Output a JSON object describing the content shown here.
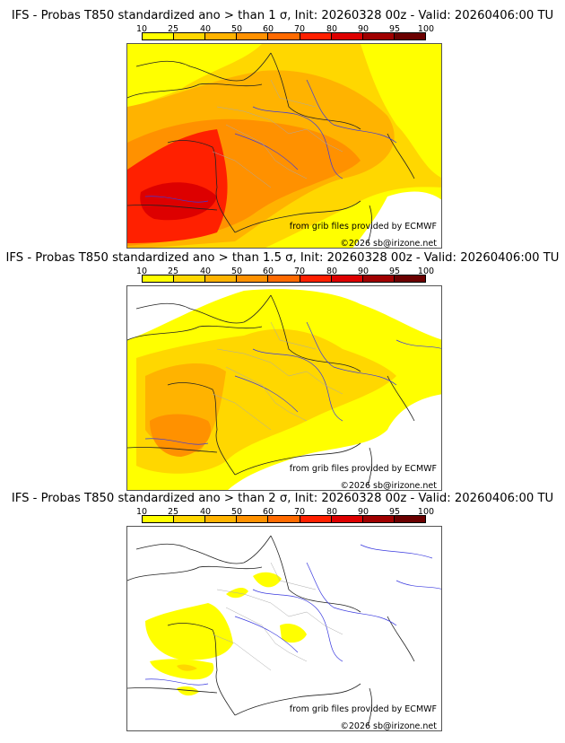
{
  "colorbar": {
    "ticks": [
      "10",
      "25",
      "40",
      "50",
      "60",
      "70",
      "80",
      "90",
      "95",
      "100"
    ],
    "colors": [
      "#ffff00",
      "#ffd700",
      "#ffb300",
      "#ff9100",
      "#ff6a00",
      "#ff2000",
      "#dd0000",
      "#a00000",
      "#6b0000"
    ]
  },
  "panels": [
    {
      "title": "IFS - Probas T850  standardized ano > than 1 σ, Init: 20260328 00z - Valid: 20260406:00 TU",
      "threshold": "1 σ",
      "credit": "from grib files provided by ECMWF",
      "copyright": "©2026 sb@irizone.net"
    },
    {
      "title": "IFS - Probas T850  standardized ano > than 1.5 σ, Init: 20260328 00z - Valid: 20260406:00 TU",
      "threshold": "1.5 σ",
      "credit": "from grib files provided by ECMWF",
      "copyright": "©2026 sb@irizone.net"
    },
    {
      "title": "IFS - Probas T850  standardized ano > than 2 σ, Init: 20260328 00z - Valid: 20260406:00 TU",
      "threshold": "2 σ",
      "credit": "from grib files provided by ECMWF",
      "copyright": "©2026 sb@irizone.net"
    }
  ]
}
